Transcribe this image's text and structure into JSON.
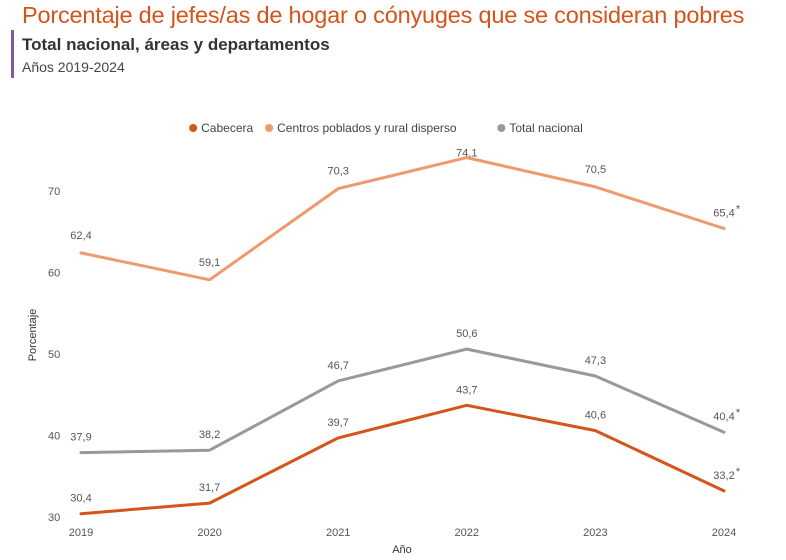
{
  "title": "Porcentaje de jefes/as de hogar o cónyuges que se consideran pobres",
  "subtitle": "Total nacional, áreas y departamentos",
  "years_label": "Años 2019-2024",
  "chart_data": {
    "type": "line",
    "title": "Porcentaje de jefes/as de hogar o cónyuges que se consideran pobres",
    "xlabel": "Año",
    "ylabel": "Porcentaje",
    "ylim": [
      30,
      75
    ],
    "yticks": [
      30,
      40,
      50,
      60,
      70
    ],
    "categories": [
      "2019",
      "2020",
      "2021",
      "2022",
      "2023",
      "2024"
    ],
    "legend_position": "top-center",
    "series": [
      {
        "name": "Cabecera",
        "color": "#d4541b",
        "values": [
          30.4,
          31.7,
          39.7,
          43.7,
          40.6,
          33.2
        ],
        "labels": [
          "30,4",
          "31,7",
          "39,7",
          "43,7",
          "40,6",
          "33,2"
        ],
        "marks": [
          "",
          "",
          "",
          "",
          "",
          "*"
        ]
      },
      {
        "name": "Centros poblados y rural disperso",
        "color": "#ef9a6c",
        "values": [
          62.4,
          59.1,
          70.3,
          74.1,
          70.5,
          65.4
        ],
        "labels": [
          "62,4",
          "59,1",
          "70,3",
          "74,1",
          "70,5",
          "65,4"
        ],
        "marks": [
          "",
          "",
          "",
          "",
          "",
          "*"
        ]
      },
      {
        "name": "Total nacional",
        "color": "#999999",
        "values": [
          37.9,
          38.2,
          46.7,
          50.6,
          47.3,
          40.4
        ],
        "labels": [
          "37,9",
          "38,2",
          "46,7",
          "50,6",
          "47,3",
          "40,4"
        ],
        "marks": [
          "",
          "",
          "",
          "",
          "",
          "*"
        ]
      }
    ]
  }
}
